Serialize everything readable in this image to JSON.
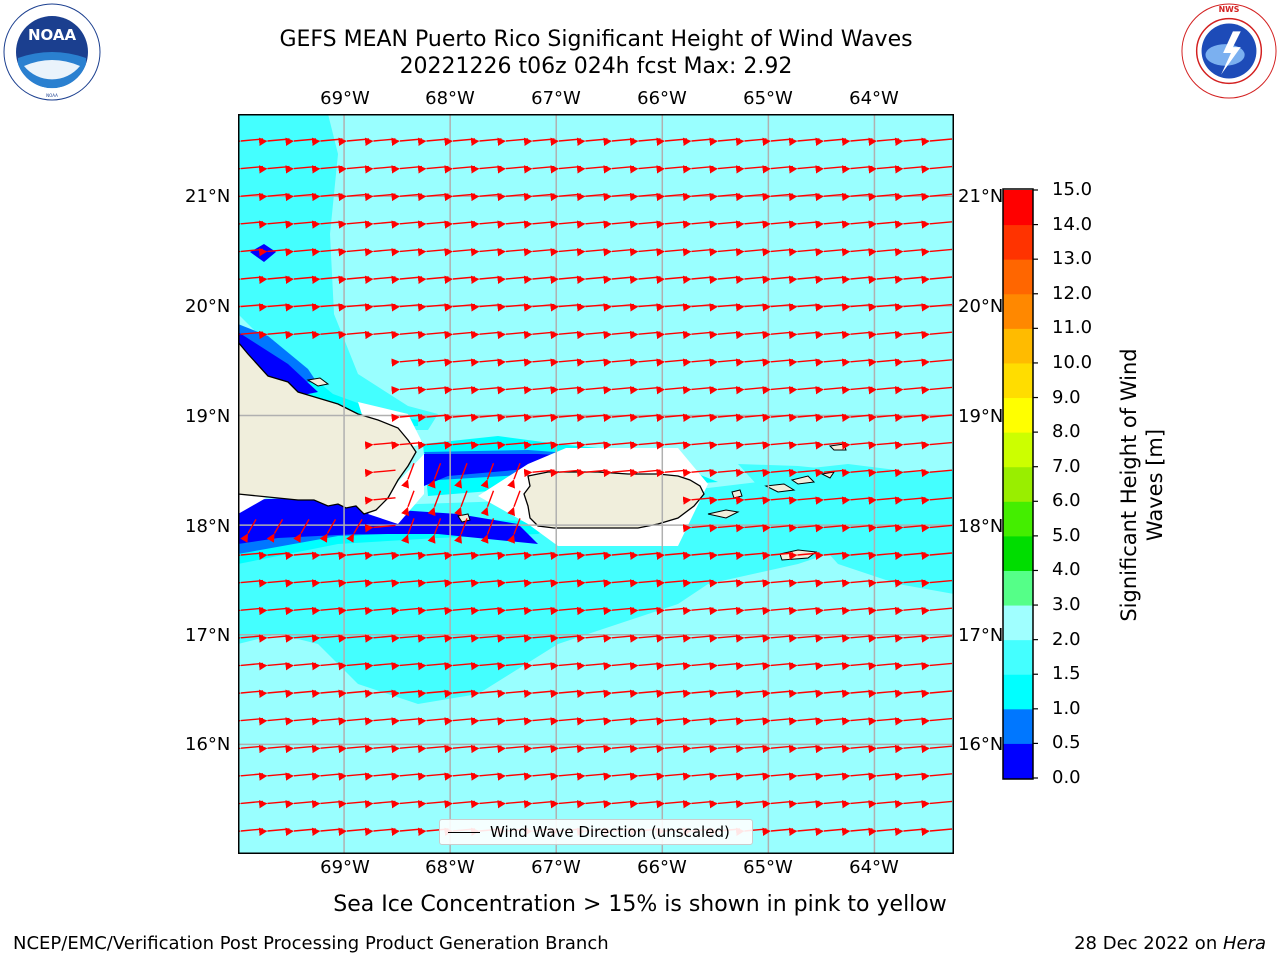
{
  "header": {
    "title_line1": "GEFS MEAN Puerto Rico Significant Height of Wind Waves",
    "title_line2": "20221226 t06z 024h fcst   Max: 2.92"
  },
  "logos": {
    "left": {
      "icon": "noaa-logo",
      "text": "NOAA",
      "ring_text": "NATIONAL OCEANIC AND ATMOSPHERIC ADMINISTRATION · U.S. DEPARTMENT OF COMMERCE"
    },
    "right": {
      "icon": "nws-logo",
      "ring_text": "NATIONAL WEATHER SERVICE"
    }
  },
  "map": {
    "lon_range": [
      -70.0,
      -63.25
    ],
    "lat_range": [
      15.0,
      21.75
    ],
    "lon_ticks": [
      "69°W",
      "68°W",
      "67°W",
      "66°W",
      "65°W",
      "64°W"
    ],
    "lat_ticks": [
      "21°N",
      "20°N",
      "19°N",
      "18°N",
      "17°N",
      "16°N"
    ],
    "grid": true,
    "colors": {
      "ocean_base": "#99ffff",
      "land": "#f0eedc",
      "arrow": "#ff0000"
    }
  },
  "legend": {
    "label": "Wind Wave Direction (unscaled)",
    "placement": "lower-center"
  },
  "colorbar": {
    "label": "Significant Height of Wind Waves [m]",
    "ticks": [
      "0.0",
      "0.5",
      "1.0",
      "1.5",
      "2.0",
      "3.0",
      "4.0",
      "5.0",
      "6.0",
      "7.0",
      "8.0",
      "9.0",
      "10.0",
      "11.0",
      "12.0",
      "13.0",
      "14.0",
      "15.0"
    ],
    "colors": [
      "#0000ff",
      "#0077ff",
      "#00ffff",
      "#44ffff",
      "#a0ffff",
      "#55ff88",
      "#00dd00",
      "#44ee00",
      "#99ee00",
      "#ccff00",
      "#ffff00",
      "#ffdd00",
      "#ffbb00",
      "#ff8800",
      "#ff6600",
      "#ff3300",
      "#ff0000"
    ]
  },
  "chart_data": {
    "type": "heatmap",
    "title": "GEFS MEAN Puerto Rico Significant Height of Wind Waves",
    "subtitle": "20221226 t06z 024h fcst   Max: 2.92",
    "max_value": 2.92,
    "units": "m",
    "vector_field": "Wind Wave Direction (unscaled)",
    "dominant_direction": "westward"
  },
  "footer": {
    "note": "Sea Ice Concentration > 15% is shown in pink to yellow",
    "credit": "NCEP/EMC/Verification Post Processing Product Generation Branch",
    "date": "28 Dec 2022 on ",
    "host": "Hera"
  }
}
